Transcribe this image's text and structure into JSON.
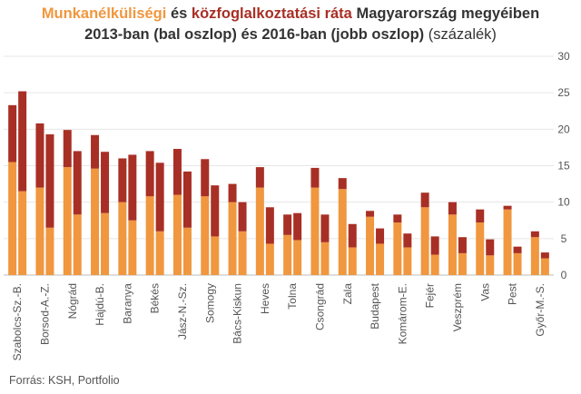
{
  "title": {
    "part1": "Munkanélküliségi",
    "part2": " és ",
    "part3": "közfoglalkoztatási ráta",
    "part4": " Magyarország megyéiben",
    "line2_bold": "2013-ban (bal oszlop) és 2016-ban (jobb oszlop)",
    "line2_normal": " (százalék)"
  },
  "source": "Forrás: KSH, Portfolio",
  "colors": {
    "unemployment": "#f0973f",
    "public_work": "#a82f25",
    "grid": "#e6e6e6",
    "baseline": "#bdbdbd"
  },
  "chart_data": {
    "type": "bar",
    "stacked": true,
    "grouped": true,
    "groups": [
      "2013",
      "2016"
    ],
    "ylim": [
      0,
      30
    ],
    "yticks": [
      0,
      5,
      10,
      15,
      20,
      25,
      30
    ],
    "y_axis_side": "right",
    "grid": true,
    "categories": [
      "Szabolcs-Sz.-B.",
      "Borsod-A.-Z.",
      "Nógrád",
      "Hajdú-B.",
      "Baranya",
      "Békés",
      "Jász-N.-Sz.",
      "Somogy",
      "Bács-Kiskun",
      "Heves",
      "Tolna",
      "Csongrád",
      "Zala",
      "Budapest",
      "Komárom-E.",
      "Fejér",
      "Veszprém",
      "Vas",
      "Pest",
      "Győr-M.-S."
    ],
    "series": [
      {
        "name": "Munkanélküliségi",
        "color": "#f0973f",
        "values_2013": [
          15.5,
          12.0,
          14.8,
          14.6,
          10.0,
          10.8,
          11.0,
          10.8,
          10.0,
          12.0,
          5.5,
          12.0,
          11.8,
          8.0,
          7.2,
          9.3,
          8.3,
          7.2,
          9.0,
          5.2
        ],
        "values_2016": [
          11.5,
          6.5,
          8.3,
          8.5,
          7.5,
          6.0,
          6.5,
          5.3,
          6.0,
          4.3,
          4.8,
          4.5,
          3.8,
          4.3,
          3.8,
          2.8,
          3.0,
          2.7,
          3.0,
          2.3
        ]
      },
      {
        "name": "közfoglalkoztatási ráta",
        "color": "#a82f25",
        "values_2013": [
          7.8,
          8.8,
          5.1,
          4.6,
          6.0,
          6.2,
          6.3,
          5.1,
          2.5,
          2.8,
          2.8,
          2.7,
          1.5,
          0.8,
          1.1,
          2.0,
          1.7,
          1.8,
          0.5,
          0.8
        ],
        "values_2016": [
          13.7,
          12.8,
          8.7,
          8.4,
          9.0,
          9.4,
          7.7,
          7.0,
          4.0,
          5.0,
          3.7,
          3.8,
          3.2,
          2.1,
          1.9,
          2.5,
          2.2,
          2.2,
          0.9,
          0.8
        ]
      }
    ]
  }
}
